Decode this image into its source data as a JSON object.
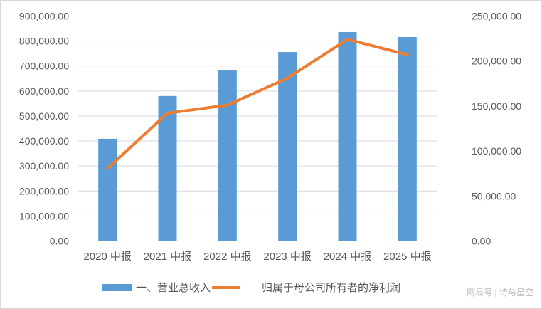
{
  "chart_data": {
    "type": "bar",
    "categories": [
      "2020 中报",
      "2021 中报",
      "2022 中报",
      "2023 中报",
      "2024 中报",
      "2025 中报"
    ],
    "series": [
      {
        "name": "一、营业总收入",
        "type": "bar",
        "axis": "left",
        "color": "#5b9bd5",
        "values": [
          409000,
          580000,
          682000,
          756000,
          836000,
          816000
        ]
      },
      {
        "name": "归属于母公司所有者的净利润",
        "type": "line",
        "axis": "right",
        "color": "#ed7d31",
        "values": [
          80700,
          142000,
          151000,
          181000,
          224000,
          207000
        ]
      }
    ],
    "yleft": {
      "lim": [
        0,
        900000
      ],
      "step": 100000,
      "ticks": [
        "0.00",
        "100,000.00",
        "200,000.00",
        "300,000.00",
        "400,000.00",
        "500,000.00",
        "600,000.00",
        "700,000.00",
        "800,000.00",
        "900,000.00"
      ]
    },
    "yright": {
      "lim": [
        0,
        250000
      ],
      "step": 50000,
      "ticks": [
        "0.00",
        "50,000.00",
        "100,000.00",
        "150,000.00",
        "200,000.00",
        "250,000.00"
      ]
    },
    "grid": true,
    "legend": "bottom"
  },
  "watermark": "网易号 | 诗与星空"
}
